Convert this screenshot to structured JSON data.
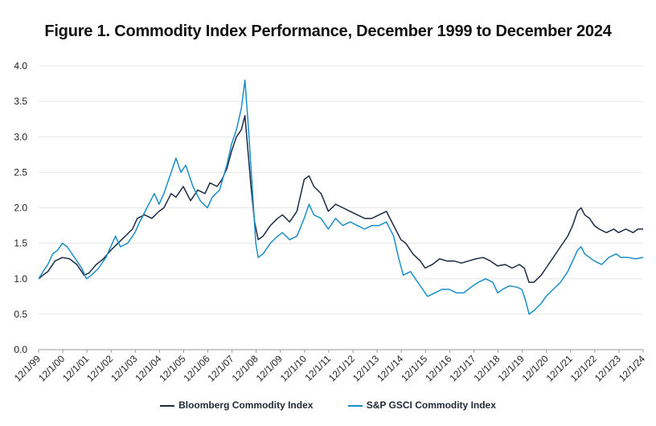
{
  "chart_data": {
    "type": "line",
    "title": "Figure 1. Commodity Index Performance, December 1999 to December 2024",
    "xlabel": "",
    "ylabel": "",
    "ylim": [
      0,
      4
    ],
    "yticks": [
      "0.0",
      "0.5",
      "1.0",
      "1.5",
      "2.0",
      "2.5",
      "3.0",
      "3.5",
      "4.0"
    ],
    "xticks": [
      "12/1/99",
      "12/1/00",
      "12/1/01",
      "12/1/02",
      "12/1/03",
      "12/1/04",
      "12/1/05",
      "12/1/06",
      "12/1/07",
      "12/1/08",
      "12/1/09",
      "12/1/10",
      "12/1/11",
      "12/1/12",
      "12/1/13",
      "12/1/14",
      "12/1/15",
      "12/1/16",
      "12/1/17",
      "12/1/18",
      "12/1/19",
      "12/1/20",
      "12/1/21",
      "12/1/22",
      "12/1/23",
      "12/1/24"
    ],
    "xlim": [
      1999.917,
      2024.917
    ],
    "grid": true,
    "legend_position": "bottom",
    "series": [
      {
        "name": "Bloomberg Commodity Index",
        "color": "#1c2b45",
        "points": [
          [
            1999.92,
            1.0
          ],
          [
            2000.1,
            1.05
          ],
          [
            2000.3,
            1.1
          ],
          [
            2000.6,
            1.25
          ],
          [
            2000.9,
            1.3
          ],
          [
            2001.2,
            1.28
          ],
          [
            2001.5,
            1.2
          ],
          [
            2001.8,
            1.05
          ],
          [
            2002.0,
            1.08
          ],
          [
            2002.3,
            1.2
          ],
          [
            2002.6,
            1.28
          ],
          [
            2002.9,
            1.4
          ],
          [
            2003.2,
            1.5
          ],
          [
            2003.5,
            1.6
          ],
          [
            2003.8,
            1.7
          ],
          [
            2004.0,
            1.85
          ],
          [
            2004.3,
            1.9
          ],
          [
            2004.6,
            1.85
          ],
          [
            2004.9,
            1.95
          ],
          [
            2005.1,
            2.0
          ],
          [
            2005.4,
            2.2
          ],
          [
            2005.6,
            2.15
          ],
          [
            2005.9,
            2.3
          ],
          [
            2006.2,
            2.1
          ],
          [
            2006.5,
            2.25
          ],
          [
            2006.8,
            2.2
          ],
          [
            2007.0,
            2.35
          ],
          [
            2007.3,
            2.3
          ],
          [
            2007.5,
            2.4
          ],
          [
            2007.7,
            2.55
          ],
          [
            2007.9,
            2.8
          ],
          [
            2008.1,
            3.0
          ],
          [
            2008.3,
            3.1
          ],
          [
            2008.45,
            3.3
          ],
          [
            2008.55,
            2.9
          ],
          [
            2008.7,
            2.3
          ],
          [
            2008.85,
            1.8
          ],
          [
            2009.0,
            1.55
          ],
          [
            2009.2,
            1.6
          ],
          [
            2009.5,
            1.75
          ],
          [
            2009.8,
            1.85
          ],
          [
            2010.0,
            1.9
          ],
          [
            2010.3,
            1.8
          ],
          [
            2010.6,
            1.95
          ],
          [
            2010.9,
            2.4
          ],
          [
            2011.1,
            2.45
          ],
          [
            2011.3,
            2.3
          ],
          [
            2011.6,
            2.2
          ],
          [
            2011.9,
            1.95
          ],
          [
            2012.2,
            2.05
          ],
          [
            2012.5,
            2.0
          ],
          [
            2012.8,
            1.95
          ],
          [
            2013.1,
            1.9
          ],
          [
            2013.4,
            1.85
          ],
          [
            2013.7,
            1.85
          ],
          [
            2014.0,
            1.9
          ],
          [
            2014.3,
            1.95
          ],
          [
            2014.6,
            1.75
          ],
          [
            2014.9,
            1.55
          ],
          [
            2015.1,
            1.5
          ],
          [
            2015.4,
            1.35
          ],
          [
            2015.7,
            1.25
          ],
          [
            2015.9,
            1.15
          ],
          [
            2016.2,
            1.2
          ],
          [
            2016.5,
            1.28
          ],
          [
            2016.8,
            1.25
          ],
          [
            2017.1,
            1.25
          ],
          [
            2017.4,
            1.22
          ],
          [
            2017.7,
            1.25
          ],
          [
            2018.0,
            1.28
          ],
          [
            2018.3,
            1.3
          ],
          [
            2018.6,
            1.25
          ],
          [
            2018.9,
            1.18
          ],
          [
            2019.2,
            1.2
          ],
          [
            2019.5,
            1.15
          ],
          [
            2019.8,
            1.2
          ],
          [
            2020.0,
            1.15
          ],
          [
            2020.2,
            0.95
          ],
          [
            2020.4,
            0.95
          ],
          [
            2020.7,
            1.05
          ],
          [
            2020.9,
            1.15
          ],
          [
            2021.2,
            1.3
          ],
          [
            2021.5,
            1.45
          ],
          [
            2021.8,
            1.6
          ],
          [
            2022.0,
            1.75
          ],
          [
            2022.2,
            1.95
          ],
          [
            2022.35,
            2.0
          ],
          [
            2022.5,
            1.9
          ],
          [
            2022.7,
            1.85
          ],
          [
            2022.9,
            1.75
          ],
          [
            2023.1,
            1.7
          ],
          [
            2023.4,
            1.65
          ],
          [
            2023.7,
            1.7
          ],
          [
            2023.9,
            1.65
          ],
          [
            2024.2,
            1.7
          ],
          [
            2024.5,
            1.65
          ],
          [
            2024.7,
            1.7
          ],
          [
            2024.92,
            1.7
          ]
        ]
      },
      {
        "name": "S&P GSCI Commodity Index",
        "color": "#1a8ec8",
        "points": [
          [
            1999.92,
            1.0
          ],
          [
            2000.1,
            1.1
          ],
          [
            2000.3,
            1.2
          ],
          [
            2000.5,
            1.35
          ],
          [
            2000.7,
            1.4
          ],
          [
            2000.9,
            1.5
          ],
          [
            2001.1,
            1.45
          ],
          [
            2001.4,
            1.3
          ],
          [
            2001.7,
            1.15
          ],
          [
            2001.9,
            1.0
          ],
          [
            2002.1,
            1.05
          ],
          [
            2002.4,
            1.15
          ],
          [
            2002.7,
            1.3
          ],
          [
            2002.9,
            1.45
          ],
          [
            2003.1,
            1.6
          ],
          [
            2003.3,
            1.45
          ],
          [
            2003.6,
            1.5
          ],
          [
            2003.9,
            1.65
          ],
          [
            2004.1,
            1.8
          ],
          [
            2004.4,
            2.0
          ],
          [
            2004.7,
            2.2
          ],
          [
            2004.9,
            2.05
          ],
          [
            2005.1,
            2.2
          ],
          [
            2005.3,
            2.4
          ],
          [
            2005.6,
            2.7
          ],
          [
            2005.8,
            2.5
          ],
          [
            2006.0,
            2.6
          ],
          [
            2006.3,
            2.3
          ],
          [
            2006.6,
            2.1
          ],
          [
            2006.9,
            2.0
          ],
          [
            2007.1,
            2.15
          ],
          [
            2007.4,
            2.25
          ],
          [
            2007.7,
            2.6
          ],
          [
            2007.9,
            2.9
          ],
          [
            2008.1,
            3.1
          ],
          [
            2008.3,
            3.4
          ],
          [
            2008.45,
            3.8
          ],
          [
            2008.6,
            3.1
          ],
          [
            2008.75,
            2.3
          ],
          [
            2008.9,
            1.5
          ],
          [
            2009.0,
            1.3
          ],
          [
            2009.2,
            1.35
          ],
          [
            2009.5,
            1.5
          ],
          [
            2009.8,
            1.6
          ],
          [
            2010.0,
            1.65
          ],
          [
            2010.3,
            1.55
          ],
          [
            2010.6,
            1.6
          ],
          [
            2010.9,
            1.85
          ],
          [
            2011.1,
            2.05
          ],
          [
            2011.3,
            1.9
          ],
          [
            2011.6,
            1.85
          ],
          [
            2011.9,
            1.7
          ],
          [
            2012.2,
            1.85
          ],
          [
            2012.5,
            1.75
          ],
          [
            2012.8,
            1.8
          ],
          [
            2013.1,
            1.75
          ],
          [
            2013.4,
            1.7
          ],
          [
            2013.7,
            1.75
          ],
          [
            2014.0,
            1.75
          ],
          [
            2014.3,
            1.8
          ],
          [
            2014.6,
            1.6
          ],
          [
            2014.8,
            1.3
          ],
          [
            2015.0,
            1.05
          ],
          [
            2015.3,
            1.1
          ],
          [
            2015.6,
            0.95
          ],
          [
            2015.8,
            0.85
          ],
          [
            2016.0,
            0.75
          ],
          [
            2016.3,
            0.8
          ],
          [
            2016.6,
            0.85
          ],
          [
            2016.9,
            0.85
          ],
          [
            2017.2,
            0.8
          ],
          [
            2017.5,
            0.8
          ],
          [
            2017.8,
            0.88
          ],
          [
            2018.1,
            0.95
          ],
          [
            2018.4,
            1.0
          ],
          [
            2018.7,
            0.95
          ],
          [
            2018.9,
            0.8
          ],
          [
            2019.1,
            0.85
          ],
          [
            2019.4,
            0.9
          ],
          [
            2019.7,
            0.88
          ],
          [
            2019.9,
            0.85
          ],
          [
            2020.05,
            0.7
          ],
          [
            2020.2,
            0.5
          ],
          [
            2020.4,
            0.55
          ],
          [
            2020.7,
            0.65
          ],
          [
            2020.9,
            0.75
          ],
          [
            2021.2,
            0.85
          ],
          [
            2021.5,
            0.95
          ],
          [
            2021.8,
            1.1
          ],
          [
            2022.0,
            1.25
          ],
          [
            2022.2,
            1.4
          ],
          [
            2022.35,
            1.45
          ],
          [
            2022.5,
            1.35
          ],
          [
            2022.7,
            1.3
          ],
          [
            2022.9,
            1.25
          ],
          [
            2023.2,
            1.2
          ],
          [
            2023.5,
            1.3
          ],
          [
            2023.8,
            1.35
          ],
          [
            2024.0,
            1.3
          ],
          [
            2024.3,
            1.3
          ],
          [
            2024.6,
            1.28
          ],
          [
            2024.92,
            1.3
          ]
        ]
      }
    ]
  }
}
